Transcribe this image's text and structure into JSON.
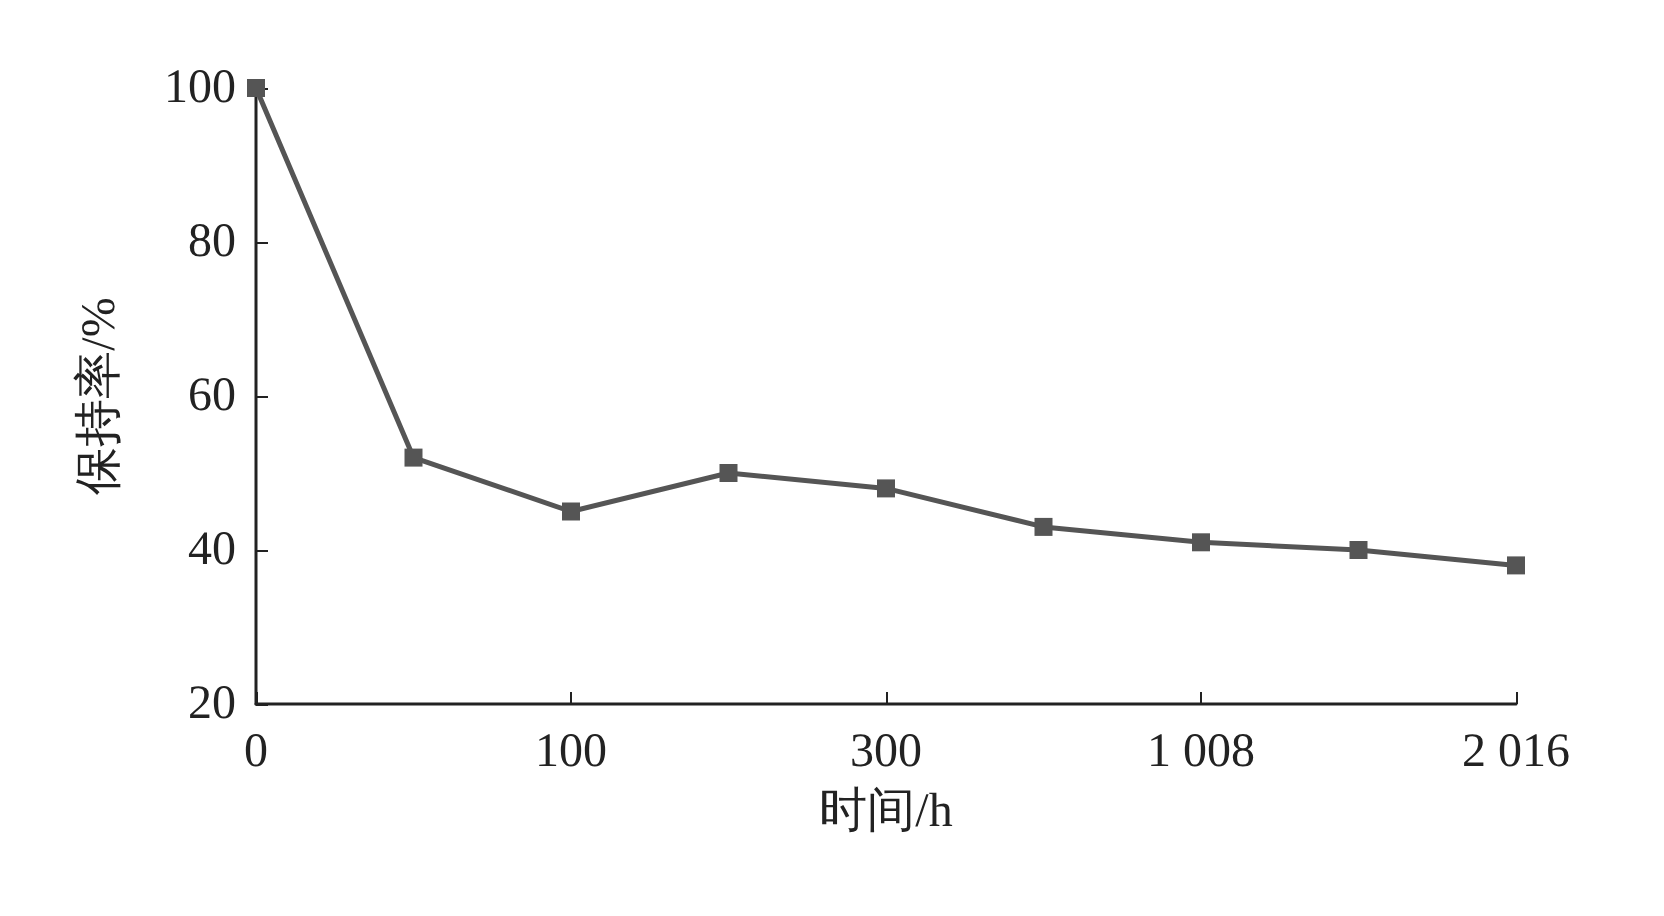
{
  "chart_data": {
    "type": "line",
    "xlabel": "时间/h",
    "ylabel": "保持率/%",
    "categories": [
      "0",
      null,
      "100",
      null,
      "300",
      null,
      "1 008",
      null,
      "2 016"
    ],
    "series": [
      {
        "color": "#555555",
        "values": [
          100,
          52,
          45,
          50,
          48,
          43,
          41,
          40,
          38
        ]
      }
    ],
    "ylim": [
      20,
      100
    ],
    "yticks": [
      20,
      40,
      60,
      80,
      100
    ],
    "grid": false,
    "marker": "square",
    "line_style": "solid"
  }
}
